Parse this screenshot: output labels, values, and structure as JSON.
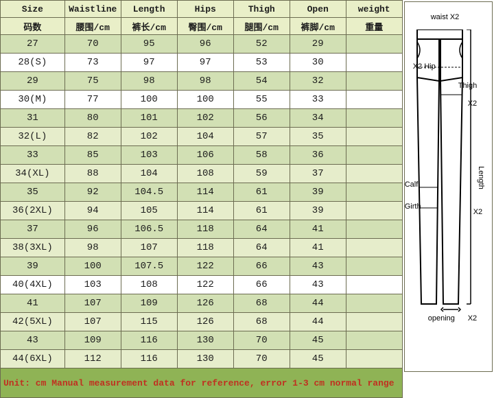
{
  "header": {
    "en": [
      "Size",
      "Waistline",
      "Length",
      "Hips",
      "Thigh",
      "Open",
      "weight"
    ],
    "cn": [
      "码数",
      "腰围/cm",
      "裤长/cm",
      "臀围/cm",
      "腿围/cm",
      "裤脚/cm",
      "重量"
    ]
  },
  "rows": [
    [
      "27",
      "70",
      "95",
      "96",
      "52",
      "29",
      ""
    ],
    [
      "28(S)",
      "73",
      "97",
      "97",
      "53",
      "30",
      ""
    ],
    [
      "29",
      "75",
      "98",
      "98",
      "54",
      "32",
      ""
    ],
    [
      "30(M)",
      "77",
      "100",
      "100",
      "55",
      "33",
      ""
    ],
    [
      "31",
      "80",
      "101",
      "102",
      "56",
      "34",
      ""
    ],
    [
      "32(L)",
      "82",
      "102",
      "104",
      "57",
      "35",
      ""
    ],
    [
      "33",
      "85",
      "103",
      "106",
      "58",
      "36",
      ""
    ],
    [
      "34(XL)",
      "88",
      "104",
      "108",
      "59",
      "37",
      ""
    ],
    [
      "35",
      "92",
      "104.5",
      "114",
      "61",
      "39",
      ""
    ],
    [
      "36(2XL)",
      "94",
      "105",
      "114",
      "61",
      "39",
      ""
    ],
    [
      "37",
      "96",
      "106.5",
      "118",
      "64",
      "41",
      ""
    ],
    [
      "38(3XL)",
      "98",
      "107",
      "118",
      "64",
      "41",
      ""
    ],
    [
      "39",
      "100",
      "107.5",
      "122",
      "66",
      "43",
      ""
    ],
    [
      "40(4XL)",
      "103",
      "108",
      "122",
      "66",
      "43",
      ""
    ],
    [
      "41",
      "107",
      "109",
      "126",
      "68",
      "44",
      ""
    ],
    [
      "42(5XL)",
      "107",
      "115",
      "126",
      "68",
      "44",
      ""
    ],
    [
      "43",
      "109",
      "116",
      "130",
      "70",
      "45",
      ""
    ],
    [
      "44(6XL)",
      "112",
      "116",
      "130",
      "70",
      "45",
      ""
    ]
  ],
  "footer": "Unit: cm    Manual measurement data for reference, error 1-3 cm normal range",
  "colors": {
    "header_bg": "#e9efc8",
    "row_light": "#ffffff",
    "row_green1": "#d2e0b4",
    "row_green2": "#e6edcb",
    "footer_bg": "#8fb355",
    "footer_text": "#c03020",
    "border": "#6b6b50"
  },
  "row_bg_pattern": [
    "#d2e0b4",
    "#ffffff",
    "#d2e0b4",
    "#ffffff",
    "#d2e0b4",
    "#e6edcb",
    "#d2e0b4",
    "#e6edcb",
    "#d2e0b4",
    "#e6edcb",
    "#d2e0b4",
    "#e6edcb",
    "#d2e0b4",
    "#ffffff",
    "#d2e0b4",
    "#e6edcb",
    "#d2e0b4",
    "#e6edcb"
  ],
  "diagram": {
    "labels": {
      "waist": "waist X2",
      "hip": "X2 Hip",
      "thigh": "Thigh",
      "x2_1": "X2",
      "calf": "Calf",
      "girth": "Girth",
      "length": "Length",
      "x2_2": "X2",
      "opening": "opening",
      "x2_3": "X2"
    }
  }
}
